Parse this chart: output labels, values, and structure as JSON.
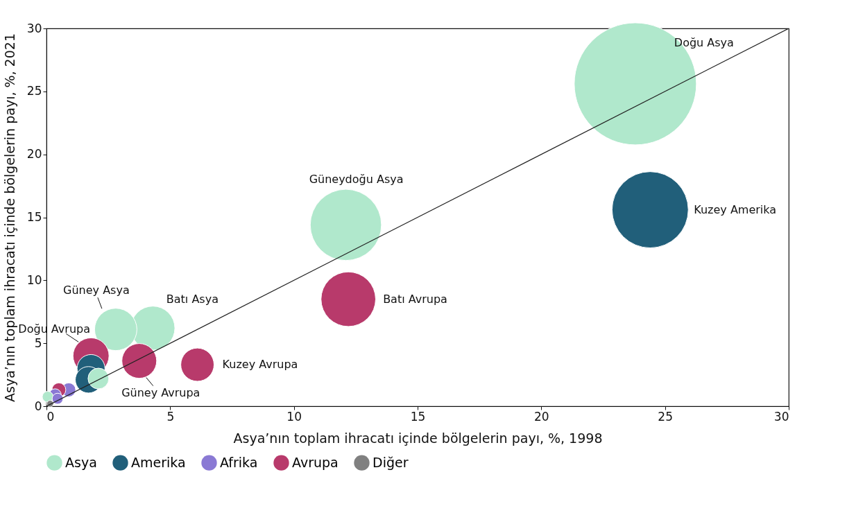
{
  "chart_data": {
    "type": "bubble",
    "xlabel": "Asya’nın toplam ihracatı içinde bölgelerin payı, %, 1998",
    "ylabel": "Asya’nın toplam ihracatı içinde bölgelerin payı, %, 2021",
    "xlim": [
      0,
      30
    ],
    "ylim": [
      0,
      30
    ],
    "xticks": [
      0,
      5,
      10,
      15,
      20,
      25,
      30
    ],
    "yticks": [
      0,
      5,
      10,
      15,
      20,
      25,
      30
    ],
    "grid": false,
    "legend": "bottom",
    "marker": "circle",
    "series": [
      {
        "name": "Asya",
        "color": "#b0e8cc",
        "x": [
          23.8,
          12.1,
          4.3,
          2.8,
          2.1,
          0.05
        ],
        "values": [
          25.6,
          14.4,
          6.2,
          6.1,
          2.2,
          0.75
        ],
        "sizes": [
          1,
          0.34,
          0.13,
          0.12,
          0.029,
          0.008
        ]
      },
      {
        "name": "Amerika",
        "color": "#215f7a",
        "x": [
          24.4,
          1.8,
          1.7
        ],
        "values": [
          15.6,
          3.0,
          2.1
        ],
        "sizes": [
          0.39,
          0.052,
          0.047
        ]
      },
      {
        "name": "Afrika",
        "color": "#8a79d4",
        "x": [
          0.9,
          0.35,
          0.45
        ],
        "values": [
          1.3,
          0.9,
          0.6
        ],
        "sizes": [
          0.013,
          0.01,
          0.008
        ]
      },
      {
        "name": "Avrupa",
        "color": "#b83a6b",
        "x": [
          12.2,
          1.8,
          3.75,
          6.1,
          0.5
        ],
        "values": [
          8.5,
          4.0,
          3.6,
          3.3,
          1.3
        ],
        "sizes": [
          0.2,
          0.087,
          0.081,
          0.074,
          0.013
        ]
      },
      {
        "name": "Diğer",
        "color": "#808080",
        "x": [
          0.15
        ],
        "values": [
          0.2
        ],
        "sizes": [
          0.003
        ]
      },
      {
        "type": "line",
        "marker": "none",
        "color": "#222222",
        "x": [
          0,
          30
        ],
        "values": [
          0,
          30
        ]
      }
    ],
    "annotations": [
      "Doğu Asya",
      "Kuzey Amerika",
      "Güneydoğu Asya",
      "Batı Avrupa",
      "Batı Asya",
      "Güney Asya",
      "Doğu Avrupa",
      "Güney Avrupa",
      "Kuzey Avrupa"
    ]
  }
}
